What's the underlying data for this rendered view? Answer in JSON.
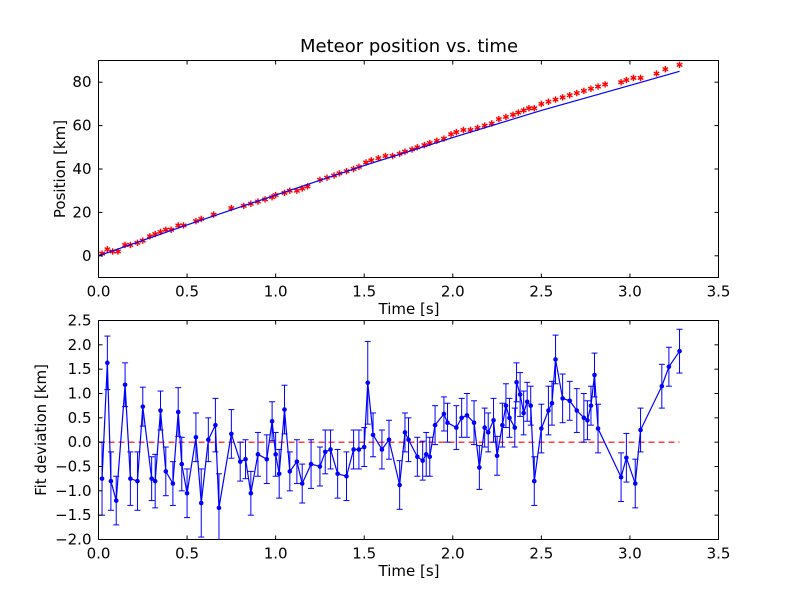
{
  "colors": {
    "fit_line": "#0000ff",
    "data_marker": "#ff0000",
    "zero_line": "#ff0000",
    "residual": "#0000ff",
    "frame": "#000000",
    "background": "#ffffff"
  },
  "chart_data": [
    {
      "type": "scatter",
      "title": "Meteor position vs. time",
      "xlabel": "Time [s]",
      "ylabel": "Position [km]",
      "xlim": [
        0,
        3.5
      ],
      "ylim": [
        -10,
        90
      ],
      "xticks": [
        "0.0",
        "0.5",
        "1.0",
        "1.5",
        "2.0",
        "2.5",
        "3.0",
        "3.5"
      ],
      "yticks": [
        "0",
        "20",
        "40",
        "60",
        "80"
      ],
      "grid": false,
      "series": [
        {
          "kind": "markers",
          "marker": "star",
          "x": [
            0.02,
            0.05,
            0.08,
            0.11,
            0.15,
            0.18,
            0.22,
            0.25,
            0.29,
            0.32,
            0.35,
            0.38,
            0.41,
            0.45,
            0.48,
            0.55,
            0.58,
            0.65,
            0.75,
            0.82,
            0.86,
            0.9,
            0.94,
            0.98,
            1.0,
            1.05,
            1.08,
            1.12,
            1.15,
            1.18,
            1.25,
            1.29,
            1.33,
            1.36,
            1.4,
            1.44,
            1.47,
            1.51,
            1.54,
            1.58,
            1.62,
            1.66,
            1.7,
            1.73,
            1.77,
            1.8,
            1.84,
            1.87,
            1.91,
            1.95,
            1.99,
            2.02,
            2.06,
            2.1,
            2.14,
            2.18,
            2.22,
            2.26,
            2.3,
            2.34,
            2.37,
            2.4,
            2.43,
            2.46,
            2.5,
            2.54,
            2.58,
            2.62,
            2.66,
            2.7,
            2.74,
            2.78,
            2.82,
            2.86,
            2.95,
            2.98,
            3.02,
            3.06,
            3.15,
            3.2,
            3.28
          ],
          "y": [
            1,
            3,
            2,
            2,
            5,
            5,
            6,
            7,
            9,
            10,
            11,
            12,
            12,
            14,
            14,
            16,
            17,
            19,
            22,
            23,
            24,
            25,
            26,
            27,
            28,
            29,
            30,
            30,
            31,
            32,
            35,
            36,
            37,
            38,
            39,
            40,
            41,
            43,
            44,
            45,
            46,
            46,
            47,
            48,
            49,
            50,
            51,
            52,
            53,
            54,
            56,
            57,
            58,
            58,
            59,
            60,
            61,
            63,
            64,
            65,
            66,
            67,
            68,
            68,
            70,
            71,
            72,
            73,
            74,
            75,
            76,
            77,
            78,
            79,
            80,
            81,
            82,
            82,
            84,
            86,
            88
          ]
        },
        {
          "kind": "line",
          "x": [
            0.0,
            0.5,
            1.0,
            1.5,
            2.0,
            2.5,
            3.0,
            3.28
          ],
          "y": [
            0,
            14.2,
            28,
            41.6,
            54.5,
            67,
            78.5,
            85
          ]
        }
      ]
    },
    {
      "type": "line",
      "xlabel": "Time [s]",
      "ylabel": "Fit deviation [km]",
      "xlim": [
        0,
        3.5
      ],
      "ylim": [
        -2.0,
        2.5
      ],
      "xticks": [
        "0.0",
        "0.5",
        "1.0",
        "1.5",
        "2.0",
        "2.5",
        "3.0",
        "3.5"
      ],
      "yticks": [
        "−2.0",
        "−1.5",
        "−1.0",
        "−0.5",
        "0.0",
        "0.5",
        "1.0",
        "1.5",
        "2.0",
        "2.5"
      ],
      "grid": false,
      "zero_line": {
        "y": 0,
        "x_range": [
          0,
          3.28
        ],
        "style": "dashed"
      },
      "series": [
        {
          "kind": "line-with-errorbars",
          "x": [
            0.02,
            0.05,
            0.07,
            0.1,
            0.15,
            0.18,
            0.22,
            0.25,
            0.3,
            0.32,
            0.35,
            0.38,
            0.42,
            0.45,
            0.47,
            0.5,
            0.55,
            0.58,
            0.62,
            0.66,
            0.68,
            0.75,
            0.8,
            0.83,
            0.86,
            0.9,
            0.95,
            0.98,
            1.0,
            1.02,
            1.05,
            1.08,
            1.12,
            1.15,
            1.2,
            1.25,
            1.28,
            1.31,
            1.35,
            1.4,
            1.44,
            1.47,
            1.5,
            1.52,
            1.55,
            1.6,
            1.64,
            1.7,
            1.73,
            1.75,
            1.8,
            1.83,
            1.85,
            1.87,
            1.9,
            1.95,
            1.97,
            2.02,
            2.05,
            2.08,
            2.12,
            2.15,
            2.18,
            2.2,
            2.23,
            2.25,
            2.28,
            2.3,
            2.32,
            2.35,
            2.36,
            2.38,
            2.4,
            2.42,
            2.44,
            2.46,
            2.5,
            2.54,
            2.56,
            2.58,
            2.62,
            2.66,
            2.7,
            2.74,
            2.76,
            2.78,
            2.8,
            2.82,
            2.95,
            2.98,
            3.03,
            3.06,
            3.18,
            3.22,
            3.28
          ],
          "y": [
            -0.75,
            1.63,
            -0.8,
            -1.2,
            1.18,
            -0.75,
            -0.8,
            0.73,
            -0.75,
            -0.8,
            0.65,
            -0.6,
            -0.85,
            0.62,
            -0.45,
            -1.05,
            0.1,
            -1.25,
            0.05,
            0.35,
            -1.35,
            0.17,
            -0.4,
            -0.35,
            -1.05,
            -0.25,
            -0.35,
            0.43,
            -0.25,
            -0.65,
            0.67,
            -0.6,
            -0.4,
            -0.85,
            -0.45,
            -0.5,
            -0.2,
            -0.15,
            -0.65,
            -0.7,
            -0.15,
            -0.15,
            -0.1,
            1.22,
            0.15,
            -0.15,
            0.05,
            -0.88,
            0.2,
            0.05,
            -0.3,
            -0.38,
            -0.25,
            -0.3,
            0.35,
            0.58,
            0.4,
            0.3,
            0.5,
            0.55,
            0.4,
            -0.52,
            0.3,
            0.2,
            0.45,
            -0.28,
            0.35,
            0.75,
            0.5,
            0.3,
            1.23,
            0.98,
            0.6,
            0.83,
            0.75,
            -0.8,
            0.28,
            0.65,
            0.8,
            1.7,
            0.9,
            0.85,
            0.65,
            0.5,
            0.45,
            0.75,
            1.38,
            0.28,
            -0.72,
            -0.32,
            -0.85,
            0.25,
            1.15,
            1.55,
            1.87
          ],
          "err": [
            0.75,
            0.55,
            0.6,
            0.5,
            0.45,
            0.55,
            0.6,
            0.4,
            0.45,
            0.55,
            0.4,
            0.5,
            0.45,
            0.5,
            0.55,
            0.5,
            0.5,
            0.7,
            0.45,
            0.55,
            0.7,
            0.5,
            0.4,
            0.4,
            0.45,
            0.45,
            0.5,
            0.4,
            0.45,
            0.5,
            0.5,
            0.4,
            0.45,
            0.4,
            0.5,
            0.4,
            0.45,
            0.4,
            0.5,
            0.5,
            0.4,
            0.4,
            0.4,
            0.85,
            0.45,
            0.4,
            0.4,
            0.5,
            0.4,
            0.45,
            0.4,
            0.4,
            0.45,
            0.4,
            0.4,
            0.35,
            0.4,
            0.45,
            0.4,
            0.45,
            0.45,
            0.45,
            0.4,
            0.4,
            0.45,
            0.4,
            0.45,
            0.45,
            0.4,
            0.4,
            0.4,
            0.45,
            0.45,
            0.4,
            0.4,
            0.5,
            0.5,
            0.5,
            0.45,
            0.5,
            0.5,
            0.4,
            0.45,
            0.5,
            0.4,
            0.4,
            0.45,
            0.5,
            0.5,
            0.5,
            0.5,
            0.45,
            0.45,
            0.4,
            0.45
          ]
        }
      ]
    }
  ]
}
